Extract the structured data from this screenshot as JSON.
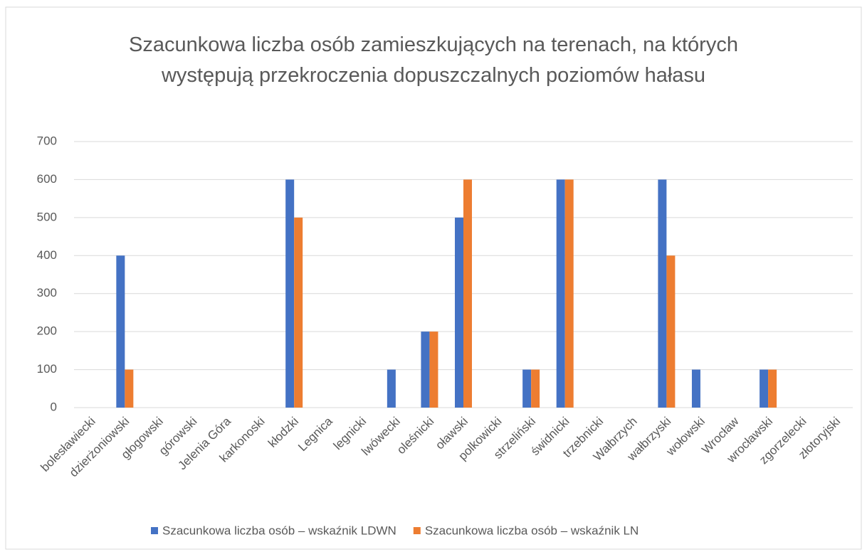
{
  "chart_data": {
    "type": "bar",
    "title": "Szacunkowa liczba osób zamieszkujących na terenach, na których występują przekroczenia dopuszczalnych poziomów hałasu",
    "categories": [
      "bolesławiecki",
      "dzierżoniowski",
      "głogowski",
      "górowski",
      "Jelenia Góra",
      "karkonoski",
      "kłodzki",
      "Legnica",
      "legnicki",
      "lwówecki",
      "oleśnicki",
      "oławski",
      "polkowicki",
      "strzeliński",
      "świdnicki",
      "trzebnicki",
      "Wałbrzych",
      "wałbrzyski",
      "wołowski",
      "Wrocław",
      "wrocławski",
      "zgorzelecki",
      "złotoryjski"
    ],
    "series": [
      {
        "name": "Szacunkowa liczba osób – wskaźnik LDWN",
        "color": "#4472c4",
        "values": [
          0,
          400,
          0,
          0,
          0,
          0,
          600,
          0,
          0,
          100,
          200,
          500,
          0,
          100,
          600,
          0,
          0,
          600,
          100,
          0,
          100,
          0,
          0
        ]
      },
      {
        "name": "Szacunkowa liczba osób – wskaźnik LN",
        "color": "#ed7d31",
        "values": [
          0,
          100,
          0,
          0,
          0,
          0,
          500,
          0,
          0,
          0,
          200,
          600,
          0,
          100,
          600,
          0,
          0,
          400,
          0,
          0,
          100,
          0,
          0
        ]
      }
    ],
    "ylim": [
      0,
      700
    ],
    "yticks": [
      0,
      100,
      200,
      300,
      400,
      500,
      600,
      700
    ],
    "grid": true,
    "legend": "bottom"
  }
}
